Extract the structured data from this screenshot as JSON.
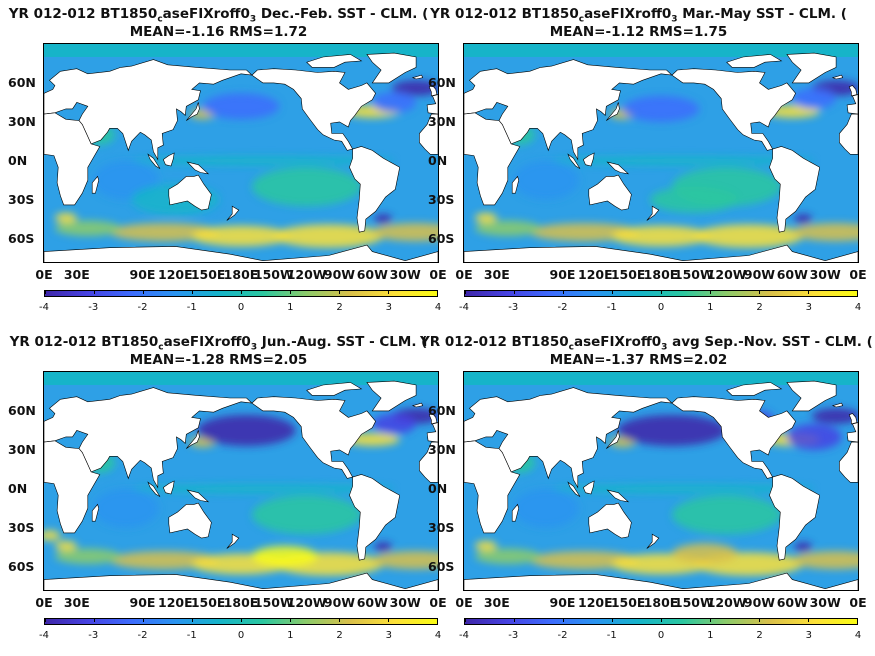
{
  "panels": [
    {
      "title_pre": "YR 012-012 BT1850",
      "title_sub1": "c",
      "title_mid": "aseFIXroff0",
      "title_sub2": "3",
      "title_post": "  Dec.-Feb. SST - CLM. (",
      "stats": "MEAN=-1.16   RMS=1.72"
    },
    {
      "title_pre": "YR 012-012 BT1850",
      "title_sub1": "c",
      "title_mid": "aseFIXroff0",
      "title_sub2": "3",
      "title_post": "  Mar.-May SST - CLM. (",
      "stats": "MEAN=-1.12   RMS=1.75"
    },
    {
      "title_pre": "YR 012-012 BT1850",
      "title_sub1": "c",
      "title_mid": "aseFIXroff0",
      "title_sub2": "3",
      "title_post": "  Jun.-Aug. SST - CLM. (",
      "stats": "MEAN=-1.28   RMS=2.05"
    },
    {
      "title_pre": "YR 012-012 BT1850",
      "title_sub1": "c",
      "title_mid": "aseFIXroff0",
      "title_sub2": "3",
      "title_post": " avg Sep.-Nov. SST - CLM. (",
      "stats": "MEAN=-1.37   RMS=2.02"
    }
  ],
  "axes": {
    "y_labels": [
      "60N",
      "30N",
      "0N",
      "30S",
      "60S"
    ],
    "x_labels": [
      "0E",
      "30E",
      "90E",
      "120E",
      "150E",
      "180E",
      "150W",
      "120W",
      "90W",
      "60W",
      "30W",
      "0E"
    ],
    "x_values": [
      0,
      30,
      90,
      120,
      150,
      180,
      210,
      240,
      270,
      300,
      330,
      360
    ],
    "y_values": [
      60,
      30,
      0,
      -30,
      -60
    ],
    "lat_range": [
      -78,
      90
    ],
    "lon_range": [
      0,
      360
    ]
  },
  "colorbar": {
    "min": -4,
    "max": 4,
    "ticks": [
      "-4",
      "-3",
      "-2",
      "-1",
      "0",
      "1",
      "2",
      "3",
      "4"
    ],
    "colors": [
      "#3e26a8",
      "#4743e3",
      "#3d6dfd",
      "#2a94f0",
      "#16b4c9",
      "#2bc7a0",
      "#8ccb6a",
      "#d9c04a",
      "#fce03a",
      "#f9fb15"
    ]
  },
  "ocean_base_color": "#2ea0e6",
  "land_color": "#ffffff"
}
